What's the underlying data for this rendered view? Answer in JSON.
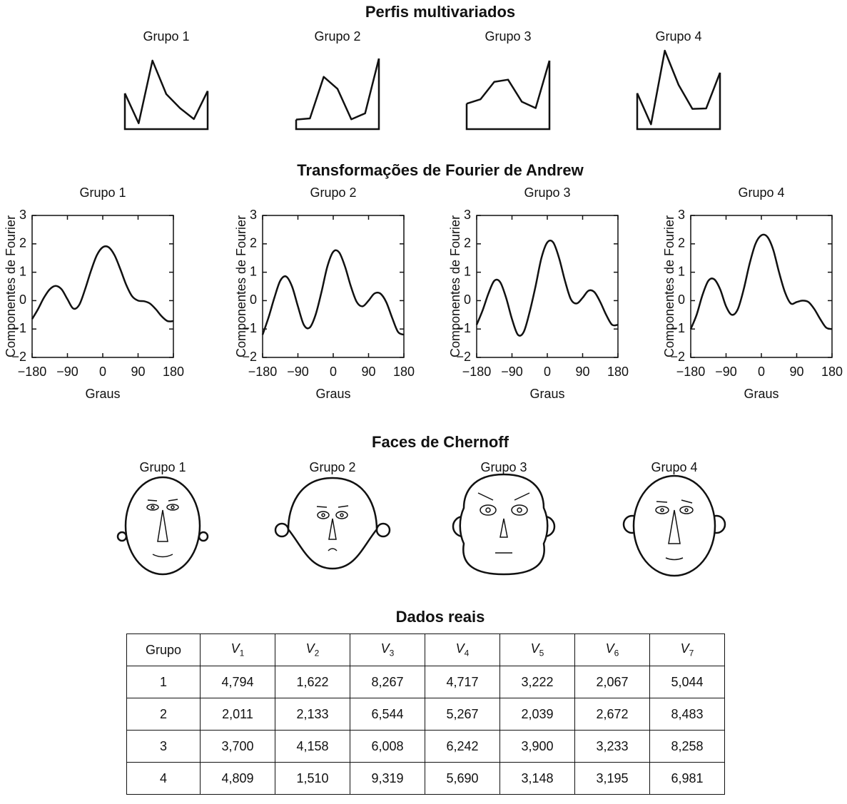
{
  "titles": {
    "profiles": "Perfis multivariados",
    "andrews": "Transformações de Fourier de Andrew",
    "faces": "Faces de Chernoff",
    "table": "Dados reais"
  },
  "chart_data": [
    {
      "type": "profile",
      "title": "Grupo 1",
      "values": [
        4.794,
        1.622,
        8.267,
        4.717,
        3.222,
        2.067,
        5.044
      ],
      "ylim": [
        1,
        10
      ],
      "color": "#111111"
    },
    {
      "type": "profile",
      "title": "Grupo 2",
      "values": [
        2.011,
        2.133,
        6.544,
        5.267,
        2.039,
        2.672,
        8.483
      ],
      "ylim": [
        1,
        10
      ],
      "color": "#111111"
    },
    {
      "type": "profile",
      "title": "Grupo 3",
      "values": [
        3.7,
        4.158,
        6.008,
        6.242,
        3.9,
        3.233,
        8.258
      ],
      "ylim": [
        1,
        10
      ],
      "color": "#111111"
    },
    {
      "type": "profile",
      "title": "Grupo 4",
      "values": [
        4.809,
        1.51,
        9.319,
        5.69,
        3.148,
        3.195,
        6.981
      ],
      "ylim": [
        1,
        10
      ],
      "color": "#111111"
    },
    {
      "type": "line",
      "title": "Grupo 1",
      "xlabel": "Graus",
      "ylabel": "Componentes de Fourier",
      "color": "#111111",
      "x": [
        -180,
        -165,
        -150,
        -135,
        -120,
        -105,
        -90,
        -75,
        -60,
        -45,
        -30,
        -15,
        0,
        15,
        30,
        45,
        60,
        75,
        90,
        105,
        120,
        135,
        150,
        165,
        180
      ],
      "values": [
        -0.65,
        -0.3,
        0.1,
        0.4,
        0.52,
        0.4,
        0.05,
        -0.28,
        -0.15,
        0.4,
        1.05,
        1.6,
        1.88,
        1.88,
        1.6,
        1.1,
        0.55,
        0.15,
        0.0,
        -0.02,
        -0.1,
        -0.3,
        -0.55,
        -0.72,
        -0.72
      ],
      "xlim": [
        -180,
        180
      ],
      "ylim": [
        -2,
        3
      ],
      "xticks": [
        {
          "value": -180,
          "label": "−180"
        },
        {
          "value": -90,
          "label": "−90"
        },
        0,
        90,
        180
      ],
      "yticks": [
        {
          "value": -2,
          "label": "−2"
        },
        {
          "value": -1,
          "label": "−1"
        },
        0,
        1,
        2,
        3
      ]
    },
    {
      "type": "line",
      "title": "Grupo 2",
      "xlabel": "Graus",
      "ylabel": "Componentes de Fourier",
      "color": "#111111",
      "x": [
        -180,
        -165,
        -150,
        -135,
        -120,
        -105,
        -90,
        -75,
        -60,
        -45,
        -30,
        -15,
        0,
        15,
        30,
        45,
        60,
        75,
        90,
        105,
        120,
        135,
        150,
        165,
        180
      ],
      "values": [
        -1.2,
        -0.6,
        0.1,
        0.7,
        0.85,
        0.5,
        -0.2,
        -0.85,
        -0.95,
        -0.5,
        0.3,
        1.2,
        1.72,
        1.7,
        1.2,
        0.5,
        -0.05,
        -0.2,
        0.0,
        0.25,
        0.25,
        -0.05,
        -0.6,
        -1.1,
        -1.2
      ],
      "xlim": [
        -180,
        180
      ],
      "ylim": [
        -2,
        3
      ],
      "xticks": [
        {
          "value": -180,
          "label": "−180"
        },
        {
          "value": -90,
          "label": "−90"
        },
        0,
        90,
        180
      ],
      "yticks": [
        {
          "value": -2,
          "label": "−2"
        },
        {
          "value": -1,
          "label": "−1"
        },
        0,
        1,
        2,
        3
      ]
    },
    {
      "type": "line",
      "title": "Grupo 3",
      "xlabel": "Graus",
      "ylabel": "Componentes de Fourier",
      "color": "#111111",
      "x": [
        -180,
        -165,
        -150,
        -135,
        -120,
        -105,
        -90,
        -75,
        -60,
        -45,
        -30,
        -15,
        0,
        15,
        30,
        45,
        60,
        75,
        90,
        105,
        120,
        135,
        150,
        165,
        180
      ],
      "values": [
        -0.85,
        -0.35,
        0.25,
        0.7,
        0.65,
        0.1,
        -0.65,
        -1.2,
        -1.1,
        -0.4,
        0.5,
        1.5,
        2.05,
        2.05,
        1.5,
        0.7,
        0.05,
        -0.1,
        0.1,
        0.35,
        0.3,
        -0.05,
        -0.5,
        -0.85,
        -0.85
      ],
      "xlim": [
        -180,
        180
      ],
      "ylim": [
        -2,
        3
      ],
      "xticks": [
        {
          "value": -180,
          "label": "−180"
        },
        {
          "value": -90,
          "label": "−90"
        },
        0,
        90,
        180
      ],
      "yticks": [
        {
          "value": -2,
          "label": "−2"
        },
        {
          "value": -1,
          "label": "−1"
        },
        0,
        1,
        2,
        3
      ]
    },
    {
      "type": "line",
      "title": "Grupo 4",
      "xlabel": "Graus",
      "ylabel": "Componentes de Fourier",
      "color": "#111111",
      "x": [
        -180,
        -165,
        -150,
        -135,
        -120,
        -105,
        -90,
        -75,
        -60,
        -45,
        -30,
        -15,
        0,
        15,
        30,
        45,
        60,
        75,
        90,
        105,
        120,
        135,
        150,
        165,
        180
      ],
      "values": [
        -1.0,
        -0.5,
        0.2,
        0.7,
        0.75,
        0.4,
        -0.2,
        -0.5,
        -0.3,
        0.4,
        1.3,
        2.0,
        2.3,
        2.25,
        1.8,
        1.0,
        0.3,
        -0.1,
        -0.05,
        0.0,
        -0.05,
        -0.3,
        -0.65,
        -0.95,
        -1.0
      ],
      "xlim": [
        -180,
        180
      ],
      "ylim": [
        -2,
        3
      ],
      "xticks": [
        {
          "value": -180,
          "label": "−180"
        },
        {
          "value": -90,
          "label": "−90"
        },
        0,
        90,
        180
      ],
      "yticks": [
        {
          "value": -2,
          "label": "−2"
        },
        {
          "value": -1,
          "label": "−1"
        },
        0,
        1,
        2,
        3
      ]
    }
  ],
  "faces": [
    {
      "title": "Grupo 1"
    },
    {
      "title": "Grupo 2"
    },
    {
      "title": "Grupo 3"
    },
    {
      "title": "Grupo 4"
    }
  ],
  "table": {
    "header": [
      "Grupo",
      {
        "text": "V",
        "sub": "1"
      },
      {
        "text": "V",
        "sub": "2"
      },
      {
        "text": "V",
        "sub": "3"
      },
      {
        "text": "V",
        "sub": "4"
      },
      {
        "text": "V",
        "sub": "5"
      },
      {
        "text": "V",
        "sub": "6"
      },
      {
        "text": "V",
        "sub": "7"
      }
    ],
    "rows": [
      [
        "1",
        "4,794",
        "1,622",
        "8,267",
        "4,717",
        "3,222",
        "2,067",
        "5,044"
      ],
      [
        "2",
        "2,011",
        "2,133",
        "6,544",
        "5,267",
        "2,039",
        "2,672",
        "8,483"
      ],
      [
        "3",
        "3,700",
        "4,158",
        "6,008",
        "6,242",
        "3,900",
        "3,233",
        "8,258"
      ],
      [
        "4",
        "4,809",
        "1,510",
        "9,319",
        "5,690",
        "3,148",
        "3,195",
        "6,981"
      ]
    ]
  }
}
